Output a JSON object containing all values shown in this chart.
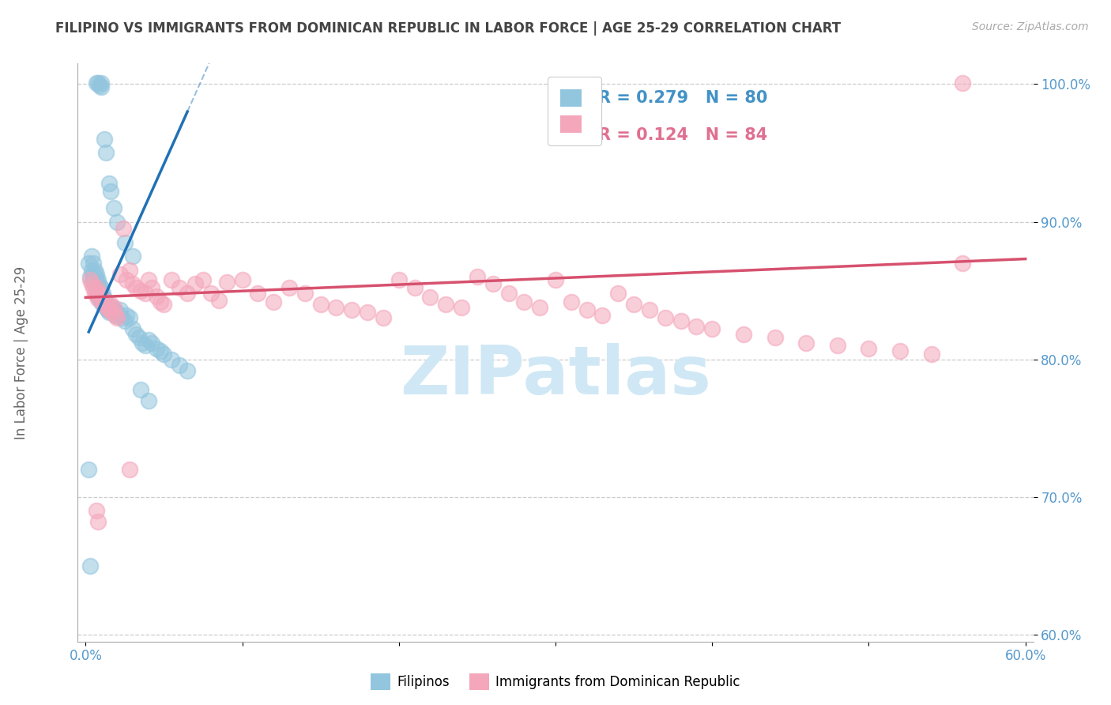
{
  "title": "FILIPINO VS IMMIGRANTS FROM DOMINICAN REPUBLIC IN LABOR FORCE | AGE 25-29 CORRELATION CHART",
  "source": "Source: ZipAtlas.com",
  "ylabel": "In Labor Force | Age 25-29",
  "xlim": [
    -0.005,
    0.605
  ],
  "ylim": [
    0.595,
    1.015
  ],
  "xticks": [
    0.0,
    0.1,
    0.2,
    0.3,
    0.4,
    0.5,
    0.6
  ],
  "xtick_labels": [
    "0.0%",
    "",
    "",
    "",
    "",
    "",
    "60.0%"
  ],
  "yticks": [
    0.6,
    0.7,
    0.8,
    0.9,
    1.0
  ],
  "ytick_labels": [
    "60.0%",
    "70.0%",
    "80.0%",
    "90.0%",
    "100.0%"
  ],
  "legend_label1": "Filipinos",
  "legend_label2": "Immigrants from Dominican Republic",
  "R1": 0.279,
  "N1": 80,
  "R2": 0.124,
  "N2": 84,
  "color_blue": "#92c5de",
  "color_blue_line": "#2171b5",
  "color_pink": "#f4a6bb",
  "color_pink_line": "#d6516e",
  "color_blue_text": "#4292c6",
  "color_pink_text": "#e07090",
  "title_color": "#444444",
  "axis_color": "#5599cc",
  "watermark": "ZIPatlas",
  "watermark_color": "#d0e8f5",
  "blue_x": [
    0.002,
    0.003,
    0.004,
    0.004,
    0.005,
    0.005,
    0.005,
    0.005,
    0.006,
    0.006,
    0.006,
    0.006,
    0.006,
    0.007,
    0.007,
    0.007,
    0.007,
    0.008,
    0.008,
    0.008,
    0.008,
    0.009,
    0.009,
    0.009,
    0.01,
    0.01,
    0.01,
    0.01,
    0.011,
    0.011,
    0.011,
    0.012,
    0.012,
    0.013,
    0.013,
    0.014,
    0.014,
    0.015,
    0.015,
    0.016,
    0.017,
    0.018,
    0.019,
    0.02,
    0.021,
    0.022,
    0.023,
    0.025,
    0.026,
    0.028,
    0.03,
    0.032,
    0.034,
    0.036,
    0.038,
    0.04,
    0.042,
    0.045,
    0.048,
    0.05,
    0.055,
    0.06,
    0.065,
    0.007,
    0.008,
    0.009,
    0.01,
    0.01,
    0.012,
    0.013,
    0.015,
    0.016,
    0.018,
    0.02,
    0.025,
    0.03,
    0.035,
    0.04,
    0.002,
    0.003
  ],
  "blue_y": [
    0.87,
    0.86,
    0.875,
    0.865,
    0.87,
    0.86,
    0.862,
    0.858,
    0.865,
    0.86,
    0.858,
    0.856,
    0.854,
    0.862,
    0.858,
    0.855,
    0.852,
    0.858,
    0.852,
    0.848,
    0.846,
    0.854,
    0.85,
    0.846,
    0.852,
    0.848,
    0.844,
    0.842,
    0.848,
    0.844,
    0.84,
    0.844,
    0.84,
    0.842,
    0.838,
    0.84,
    0.836,
    0.838,
    0.834,
    0.836,
    0.838,
    0.836,
    0.832,
    0.834,
    0.832,
    0.836,
    0.83,
    0.828,
    0.832,
    0.83,
    0.822,
    0.818,
    0.816,
    0.812,
    0.81,
    0.814,
    0.812,
    0.808,
    0.806,
    0.804,
    0.8,
    0.796,
    0.792,
    1.001,
    1.001,
    0.999,
    1.001,
    0.998,
    0.96,
    0.95,
    0.928,
    0.922,
    0.91,
    0.9,
    0.885,
    0.875,
    0.778,
    0.77,
    0.72,
    0.65
  ],
  "pink_x": [
    0.003,
    0.004,
    0.005,
    0.006,
    0.007,
    0.007,
    0.008,
    0.008,
    0.009,
    0.01,
    0.011,
    0.012,
    0.013,
    0.014,
    0.015,
    0.016,
    0.017,
    0.018,
    0.019,
    0.02,
    0.022,
    0.024,
    0.026,
    0.028,
    0.03,
    0.032,
    0.035,
    0.038,
    0.04,
    0.042,
    0.045,
    0.048,
    0.05,
    0.055,
    0.06,
    0.065,
    0.07,
    0.075,
    0.08,
    0.085,
    0.09,
    0.1,
    0.11,
    0.12,
    0.13,
    0.14,
    0.15,
    0.16,
    0.17,
    0.18,
    0.19,
    0.2,
    0.21,
    0.22,
    0.23,
    0.24,
    0.25,
    0.26,
    0.27,
    0.28,
    0.29,
    0.3,
    0.31,
    0.32,
    0.33,
    0.34,
    0.35,
    0.36,
    0.37,
    0.38,
    0.39,
    0.4,
    0.42,
    0.44,
    0.46,
    0.48,
    0.5,
    0.52,
    0.54,
    0.56,
    0.007,
    0.008,
    0.028,
    0.56
  ],
  "pink_y": [
    0.858,
    0.855,
    0.852,
    0.848,
    0.852,
    0.848,
    0.848,
    0.844,
    0.848,
    0.844,
    0.842,
    0.84,
    0.842,
    0.838,
    0.836,
    0.84,
    0.834,
    0.838,
    0.832,
    0.83,
    0.862,
    0.895,
    0.858,
    0.865,
    0.855,
    0.852,
    0.85,
    0.848,
    0.858,
    0.852,
    0.846,
    0.842,
    0.84,
    0.858,
    0.852,
    0.848,
    0.855,
    0.858,
    0.848,
    0.843,
    0.856,
    0.858,
    0.848,
    0.842,
    0.852,
    0.848,
    0.84,
    0.838,
    0.836,
    0.834,
    0.83,
    0.858,
    0.852,
    0.845,
    0.84,
    0.838,
    0.86,
    0.855,
    0.848,
    0.842,
    0.838,
    0.858,
    0.842,
    0.836,
    0.832,
    0.848,
    0.84,
    0.836,
    0.83,
    0.828,
    0.824,
    0.822,
    0.818,
    0.816,
    0.812,
    0.81,
    0.808,
    0.806,
    0.804,
    0.87,
    0.69,
    0.682,
    0.72,
    1.001
  ],
  "blue_trend_x": [
    0.002,
    0.065
  ],
  "blue_trend_y": [
    0.82,
    0.98
  ],
  "pink_trend_x": [
    0.0,
    0.6
  ],
  "pink_trend_y": [
    0.845,
    0.873
  ]
}
